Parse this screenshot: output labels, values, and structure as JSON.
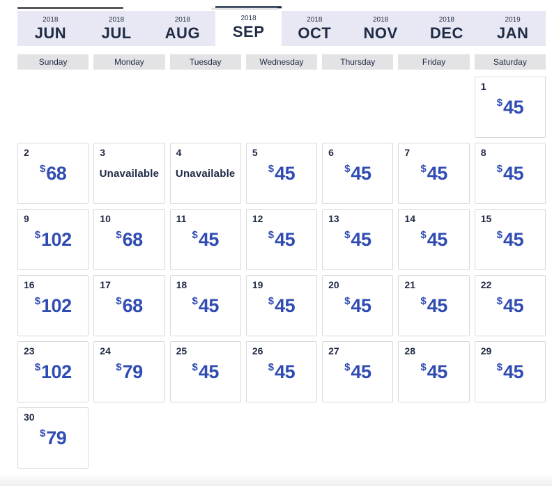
{
  "tabs": [
    {
      "year": "2018",
      "month": "JUN",
      "selected": false
    },
    {
      "year": "2018",
      "month": "JUL",
      "selected": false
    },
    {
      "year": "2018",
      "month": "AUG",
      "selected": false
    },
    {
      "year": "2018",
      "month": "SEP",
      "selected": true
    },
    {
      "year": "2018",
      "month": "OCT",
      "selected": false
    },
    {
      "year": "2018",
      "month": "NOV",
      "selected": false
    },
    {
      "year": "2018",
      "month": "DEC",
      "selected": false
    },
    {
      "year": "2019",
      "month": "JAN",
      "selected": false
    }
  ],
  "weekdays": [
    "Sunday",
    "Monday",
    "Tuesday",
    "Wednesday",
    "Thursday",
    "Friday",
    "Saturday"
  ],
  "calendar": {
    "currency": "$",
    "unavailable_label": "Unavailable",
    "days": [
      {
        "day": 1,
        "row": 1,
        "col": 7,
        "fare": 45
      },
      {
        "day": 2,
        "row": 2,
        "col": 1,
        "fare": 68
      },
      {
        "day": 3,
        "row": 2,
        "col": 2,
        "fare": null
      },
      {
        "day": 4,
        "row": 2,
        "col": 3,
        "fare": null
      },
      {
        "day": 5,
        "row": 2,
        "col": 4,
        "fare": 45
      },
      {
        "day": 6,
        "row": 2,
        "col": 5,
        "fare": 45
      },
      {
        "day": 7,
        "row": 2,
        "col": 6,
        "fare": 45
      },
      {
        "day": 8,
        "row": 2,
        "col": 7,
        "fare": 45
      },
      {
        "day": 9,
        "row": 3,
        "col": 1,
        "fare": 102
      },
      {
        "day": 10,
        "row": 3,
        "col": 2,
        "fare": 68
      },
      {
        "day": 11,
        "row": 3,
        "col": 3,
        "fare": 45
      },
      {
        "day": 12,
        "row": 3,
        "col": 4,
        "fare": 45
      },
      {
        "day": 13,
        "row": 3,
        "col": 5,
        "fare": 45
      },
      {
        "day": 14,
        "row": 3,
        "col": 6,
        "fare": 45
      },
      {
        "day": 15,
        "row": 3,
        "col": 7,
        "fare": 45
      },
      {
        "day": 16,
        "row": 4,
        "col": 1,
        "fare": 102
      },
      {
        "day": 17,
        "row": 4,
        "col": 2,
        "fare": 68
      },
      {
        "day": 18,
        "row": 4,
        "col": 3,
        "fare": 45
      },
      {
        "day": 19,
        "row": 4,
        "col": 4,
        "fare": 45
      },
      {
        "day": 20,
        "row": 4,
        "col": 5,
        "fare": 45
      },
      {
        "day": 21,
        "row": 4,
        "col": 6,
        "fare": 45
      },
      {
        "day": 22,
        "row": 4,
        "col": 7,
        "fare": 45
      },
      {
        "day": 23,
        "row": 5,
        "col": 1,
        "fare": 102
      },
      {
        "day": 24,
        "row": 5,
        "col": 2,
        "fare": 79
      },
      {
        "day": 25,
        "row": 5,
        "col": 3,
        "fare": 45
      },
      {
        "day": 26,
        "row": 5,
        "col": 4,
        "fare": 45
      },
      {
        "day": 27,
        "row": 5,
        "col": 5,
        "fare": 45
      },
      {
        "day": 28,
        "row": 5,
        "col": 6,
        "fare": 45
      },
      {
        "day": 29,
        "row": 5,
        "col": 7,
        "fare": 45
      },
      {
        "day": 30,
        "row": 6,
        "col": 1,
        "fare": 79
      }
    ]
  },
  "colors": {
    "fare_blue": "#304cb2",
    "navy": "#1f2a44",
    "tab_background": "#e7e8f3",
    "selected_tab_border": "#17243f",
    "weekday_header_background": "#e3e3e5"
  }
}
